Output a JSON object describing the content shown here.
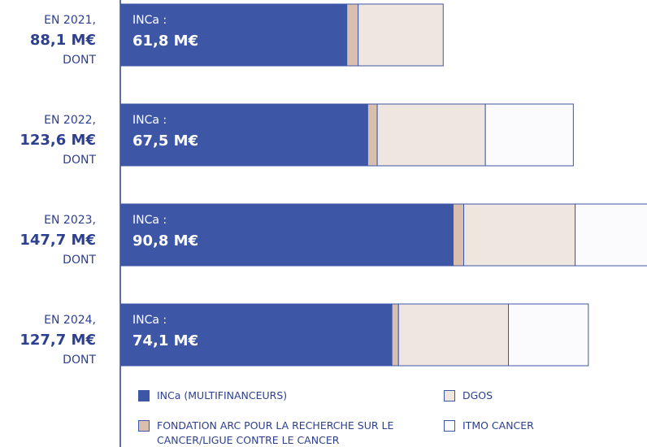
{
  "chart_data": {
    "type": "bar",
    "orientation": "horizontal",
    "stacked": true,
    "categories": [
      "EN 2021,",
      "EN 2022,",
      "EN 2023,",
      "EN 2024,"
    ],
    "totals": {
      "values": [
        88.1,
        123.6,
        147.7,
        127.7
      ],
      "value_labels": [
        "88,1 M€",
        "123,6 M€",
        "147,7 M€",
        "127,7 M€"
      ]
    },
    "total_suffix": "DONT",
    "segment_prefix": "INCa :",
    "xlim": [
      0,
      143.7
    ],
    "series": [
      {
        "name": "INCa (MULTIFINANCEURS)",
        "color": "#3d56a6",
        "values": [
          61.8,
          67.5,
          90.8,
          74.1
        ],
        "value_labels": [
          "61,8 M€",
          "67,5 M€",
          "90,8 M€",
          "74,1 M€"
        ]
      },
      {
        "name": "FONDATION ARC POUR LA RECHERCHE SUR LE CANCER/LIGUE CONTRE LE CANCER",
        "color": "#d9bfae",
        "values": [
          3.1,
          2.6,
          2.9,
          1.8
        ]
      },
      {
        "name": "DGOS",
        "color": "#efe7df",
        "values": [
          23.2,
          29.5,
          30.4,
          30.0
        ]
      },
      {
        "name": "ITMO CANCER",
        "color": "#fbfbfd",
        "values": [
          0,
          24.0,
          23.6,
          21.8
        ]
      }
    ]
  }
}
